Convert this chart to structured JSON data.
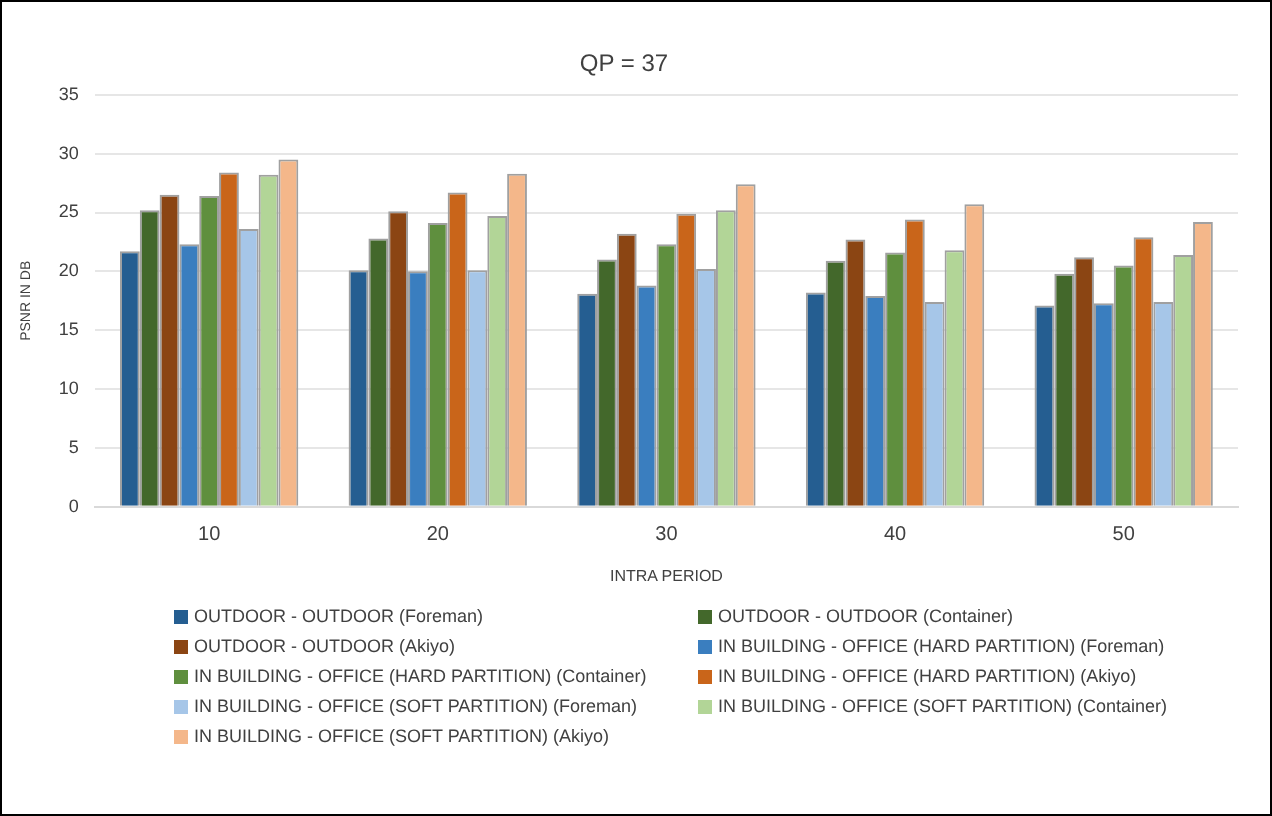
{
  "chart_data": {
    "type": "bar",
    "title": "QP = 37",
    "xlabel": "INTRA PERIOD",
    "ylabel": "PSNR IN DB",
    "categories": [
      "10",
      "20",
      "30",
      "40",
      "50"
    ],
    "ylim": [
      0,
      35
    ],
    "yticks": [
      0,
      5,
      10,
      15,
      20,
      25,
      30,
      35
    ],
    "grid": "y",
    "legend": "bottom",
    "series": [
      {
        "name": "OUTDOOR - OUTDOOR (Foreman)",
        "color": "#255e91",
        "values": [
          21.7,
          20.1,
          18.1,
          18.2,
          17.1
        ]
      },
      {
        "name": "OUTDOOR - OUTDOOR (Container)",
        "color": "#43682b",
        "values": [
          25.2,
          22.8,
          21.0,
          20.9,
          19.8
        ]
      },
      {
        "name": "OUTDOOR - OUTDOOR (Akiyo)",
        "color": "#8b4513",
        "values": [
          26.5,
          25.1,
          23.2,
          22.7,
          21.2
        ]
      },
      {
        "name": "IN BUILDING - OFFICE (HARD PARTITION) (Foreman)",
        "color": "#3a7ebf",
        "values": [
          22.3,
          20.0,
          18.8,
          17.9,
          17.3
        ]
      },
      {
        "name": "IN BUILDING - OFFICE (HARD PARTITION) (Container)",
        "color": "#5f8f3e",
        "values": [
          26.4,
          24.1,
          22.3,
          21.6,
          20.5
        ]
      },
      {
        "name": "IN BUILDING - OFFICE (HARD PARTITION) (Akiyo)",
        "color": "#c9651a",
        "values": [
          28.4,
          26.7,
          24.9,
          24.4,
          22.9
        ]
      },
      {
        "name": "IN BUILDING - OFFICE (SOFT PARTITION) (Foreman)",
        "color": "#a6c6e8",
        "values": [
          23.6,
          20.1,
          20.2,
          17.4,
          17.4
        ]
      },
      {
        "name": "IN BUILDING - OFFICE (SOFT PARTITION) (Container)",
        "color": "#b2d597",
        "values": [
          28.2,
          24.7,
          25.2,
          21.8,
          21.4
        ]
      },
      {
        "name": "IN BUILDING - OFFICE (SOFT PARTITION) (Akiyo)",
        "color": "#f4b78a",
        "values": [
          29.5,
          28.3,
          27.4,
          25.7,
          24.2
        ]
      }
    ]
  }
}
